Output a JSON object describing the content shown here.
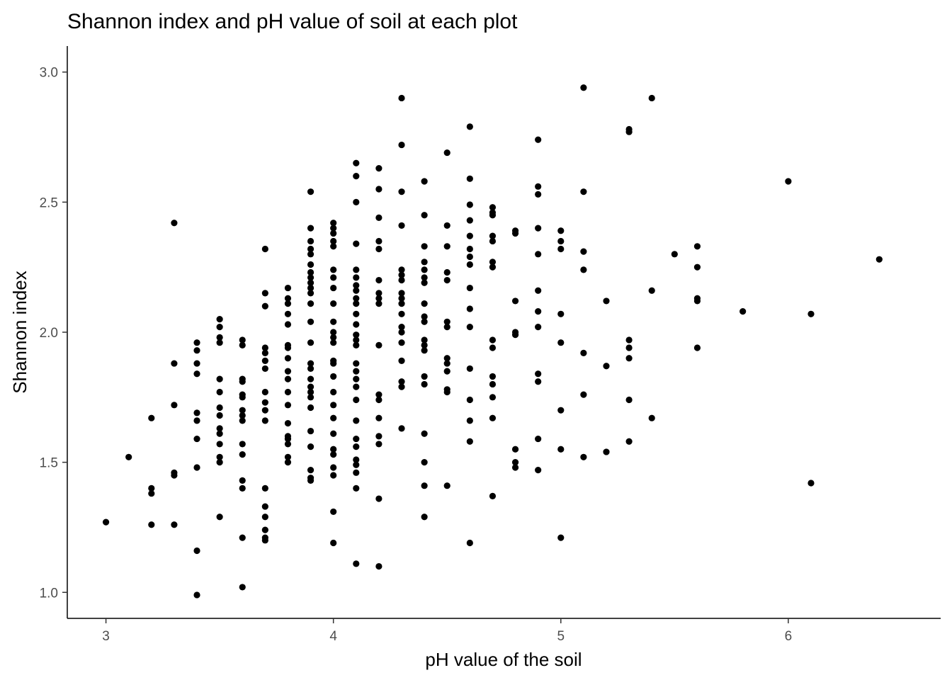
{
  "chart_data": {
    "type": "scatter",
    "title": "Shannon index and pH value of soil at each plot",
    "xlabel": "pH value of the soil",
    "ylabel": "Shannon index",
    "xlim": [
      2.83,
      6.67
    ],
    "ylim": [
      0.9,
      3.1
    ],
    "x_ticks": [
      3,
      4,
      5,
      6
    ],
    "y_ticks": [
      1.0,
      1.5,
      2.0,
      2.5,
      3.0
    ],
    "x_tick_labels": [
      "3",
      "4",
      "5",
      "6"
    ],
    "y_tick_labels": [
      "1.0",
      "1.5",
      "2.0",
      "2.5",
      "3.0"
    ],
    "grid": false,
    "point_color": "#000000",
    "points": [
      [
        3.0,
        1.27
      ],
      [
        3.1,
        1.52
      ],
      [
        3.2,
        1.67
      ],
      [
        3.2,
        1.4
      ],
      [
        3.2,
        1.38
      ],
      [
        3.2,
        1.26
      ],
      [
        3.3,
        2.42
      ],
      [
        3.3,
        1.88
      ],
      [
        3.3,
        1.72
      ],
      [
        3.3,
        1.46
      ],
      [
        3.3,
        1.45
      ],
      [
        3.3,
        1.26
      ],
      [
        3.4,
        1.96
      ],
      [
        3.4,
        1.93
      ],
      [
        3.4,
        1.88
      ],
      [
        3.4,
        1.84
      ],
      [
        3.4,
        1.69
      ],
      [
        3.4,
        1.66
      ],
      [
        3.4,
        1.59
      ],
      [
        3.4,
        1.48
      ],
      [
        3.4,
        1.16
      ],
      [
        3.4,
        0.99
      ],
      [
        3.5,
        2.05
      ],
      [
        3.5,
        2.02
      ],
      [
        3.5,
        1.98
      ],
      [
        3.5,
        1.96
      ],
      [
        3.5,
        1.82
      ],
      [
        3.5,
        1.77
      ],
      [
        3.5,
        1.71
      ],
      [
        3.5,
        1.68
      ],
      [
        3.5,
        1.63
      ],
      [
        3.5,
        1.61
      ],
      [
        3.5,
        1.57
      ],
      [
        3.5,
        1.52
      ],
      [
        3.5,
        1.5
      ],
      [
        3.5,
        1.29
      ],
      [
        3.6,
        1.97
      ],
      [
        3.6,
        1.95
      ],
      [
        3.6,
        1.82
      ],
      [
        3.6,
        1.81
      ],
      [
        3.6,
        1.76
      ],
      [
        3.6,
        1.75
      ],
      [
        3.6,
        1.7
      ],
      [
        3.6,
        1.68
      ],
      [
        3.6,
        1.66
      ],
      [
        3.6,
        1.57
      ],
      [
        3.6,
        1.53
      ],
      [
        3.6,
        1.43
      ],
      [
        3.6,
        1.4
      ],
      [
        3.6,
        1.21
      ],
      [
        3.6,
        1.02
      ],
      [
        3.7,
        2.32
      ],
      [
        3.7,
        2.15
      ],
      [
        3.7,
        2.1
      ],
      [
        3.7,
        1.94
      ],
      [
        3.7,
        1.92
      ],
      [
        3.7,
        1.89
      ],
      [
        3.7,
        1.86
      ],
      [
        3.7,
        1.77
      ],
      [
        3.7,
        1.73
      ],
      [
        3.7,
        1.7
      ],
      [
        3.7,
        1.66
      ],
      [
        3.7,
        1.4
      ],
      [
        3.7,
        1.33
      ],
      [
        3.7,
        1.29
      ],
      [
        3.7,
        1.24
      ],
      [
        3.7,
        1.21
      ],
      [
        3.7,
        1.2
      ],
      [
        3.8,
        2.17
      ],
      [
        3.8,
        2.13
      ],
      [
        3.8,
        2.11
      ],
      [
        3.8,
        2.07
      ],
      [
        3.8,
        2.03
      ],
      [
        3.8,
        1.95
      ],
      [
        3.8,
        1.94
      ],
      [
        3.8,
        1.9
      ],
      [
        3.8,
        1.85
      ],
      [
        3.8,
        1.82
      ],
      [
        3.8,
        1.77
      ],
      [
        3.8,
        1.72
      ],
      [
        3.8,
        1.65
      ],
      [
        3.8,
        1.6
      ],
      [
        3.8,
        1.59
      ],
      [
        3.8,
        1.57
      ],
      [
        3.8,
        1.52
      ],
      [
        3.8,
        1.5
      ],
      [
        3.9,
        2.54
      ],
      [
        3.9,
        2.4
      ],
      [
        3.9,
        2.35
      ],
      [
        3.9,
        2.32
      ],
      [
        3.9,
        2.3
      ],
      [
        3.9,
        2.26
      ],
      [
        3.9,
        2.23
      ],
      [
        3.9,
        2.21
      ],
      [
        3.9,
        2.19
      ],
      [
        3.9,
        2.17
      ],
      [
        3.9,
        2.15
      ],
      [
        3.9,
        2.11
      ],
      [
        3.9,
        2.04
      ],
      [
        3.9,
        1.96
      ],
      [
        3.9,
        1.88
      ],
      [
        3.9,
        1.86
      ],
      [
        3.9,
        1.82
      ],
      [
        3.9,
        1.79
      ],
      [
        3.9,
        1.77
      ],
      [
        3.9,
        1.75
      ],
      [
        3.9,
        1.71
      ],
      [
        3.9,
        1.62
      ],
      [
        3.9,
        1.56
      ],
      [
        3.9,
        1.47
      ],
      [
        3.9,
        1.44
      ],
      [
        3.9,
        1.43
      ],
      [
        4.0,
        2.42
      ],
      [
        4.0,
        2.4
      ],
      [
        4.0,
        2.38
      ],
      [
        4.0,
        2.35
      ],
      [
        4.0,
        2.33
      ],
      [
        4.0,
        2.24
      ],
      [
        4.0,
        2.21
      ],
      [
        4.0,
        2.17
      ],
      [
        4.0,
        2.11
      ],
      [
        4.0,
        2.04
      ],
      [
        4.0,
        2.0
      ],
      [
        4.0,
        1.98
      ],
      [
        4.0,
        1.96
      ],
      [
        4.0,
        1.89
      ],
      [
        4.0,
        1.88
      ],
      [
        4.0,
        1.83
      ],
      [
        4.0,
        1.77
      ],
      [
        4.0,
        1.72
      ],
      [
        4.0,
        1.67
      ],
      [
        4.0,
        1.61
      ],
      [
        4.0,
        1.55
      ],
      [
        4.0,
        1.53
      ],
      [
        4.0,
        1.48
      ],
      [
        4.0,
        1.45
      ],
      [
        4.0,
        1.31
      ],
      [
        4.0,
        1.19
      ],
      [
        4.1,
        2.65
      ],
      [
        4.1,
        2.6
      ],
      [
        4.1,
        2.5
      ],
      [
        4.1,
        2.34
      ],
      [
        4.1,
        2.24
      ],
      [
        4.1,
        2.21
      ],
      [
        4.1,
        2.18
      ],
      [
        4.1,
        2.16
      ],
      [
        4.1,
        2.13
      ],
      [
        4.1,
        2.11
      ],
      [
        4.1,
        2.07
      ],
      [
        4.1,
        2.03
      ],
      [
        4.1,
        1.99
      ],
      [
        4.1,
        1.97
      ],
      [
        4.1,
        1.95
      ],
      [
        4.1,
        1.88
      ],
      [
        4.1,
        1.85
      ],
      [
        4.1,
        1.82
      ],
      [
        4.1,
        1.79
      ],
      [
        4.1,
        1.74
      ],
      [
        4.1,
        1.66
      ],
      [
        4.1,
        1.59
      ],
      [
        4.1,
        1.56
      ],
      [
        4.1,
        1.51
      ],
      [
        4.1,
        1.49
      ],
      [
        4.1,
        1.46
      ],
      [
        4.1,
        1.4
      ],
      [
        4.1,
        1.11
      ],
      [
        4.2,
        2.63
      ],
      [
        4.2,
        2.55
      ],
      [
        4.2,
        2.44
      ],
      [
        4.2,
        2.35
      ],
      [
        4.2,
        2.32
      ],
      [
        4.2,
        2.2
      ],
      [
        4.2,
        2.15
      ],
      [
        4.2,
        2.13
      ],
      [
        4.2,
        2.11
      ],
      [
        4.2,
        1.95
      ],
      [
        4.2,
        1.76
      ],
      [
        4.2,
        1.74
      ],
      [
        4.2,
        1.67
      ],
      [
        4.2,
        1.6
      ],
      [
        4.2,
        1.57
      ],
      [
        4.2,
        1.36
      ],
      [
        4.2,
        1.1
      ],
      [
        4.3,
        2.9
      ],
      [
        4.3,
        2.72
      ],
      [
        4.3,
        2.54
      ],
      [
        4.3,
        2.41
      ],
      [
        4.3,
        2.24
      ],
      [
        4.3,
        2.22
      ],
      [
        4.3,
        2.2
      ],
      [
        4.3,
        2.15
      ],
      [
        4.3,
        2.13
      ],
      [
        4.3,
        2.11
      ],
      [
        4.3,
        2.07
      ],
      [
        4.3,
        2.02
      ],
      [
        4.3,
        2.0
      ],
      [
        4.3,
        1.96
      ],
      [
        4.3,
        1.89
      ],
      [
        4.3,
        1.81
      ],
      [
        4.3,
        1.79
      ],
      [
        4.3,
        1.63
      ],
      [
        4.4,
        2.58
      ],
      [
        4.4,
        2.45
      ],
      [
        4.4,
        2.33
      ],
      [
        4.4,
        2.27
      ],
      [
        4.4,
        2.24
      ],
      [
        4.4,
        2.21
      ],
      [
        4.4,
        2.19
      ],
      [
        4.4,
        2.11
      ],
      [
        4.4,
        2.06
      ],
      [
        4.4,
        2.04
      ],
      [
        4.4,
        1.97
      ],
      [
        4.4,
        1.95
      ],
      [
        4.4,
        1.93
      ],
      [
        4.4,
        1.83
      ],
      [
        4.4,
        1.8
      ],
      [
        4.4,
        1.61
      ],
      [
        4.4,
        1.5
      ],
      [
        4.4,
        1.41
      ],
      [
        4.4,
        1.29
      ],
      [
        4.5,
        2.69
      ],
      [
        4.5,
        2.41
      ],
      [
        4.5,
        2.33
      ],
      [
        4.5,
        2.23
      ],
      [
        4.5,
        2.2
      ],
      [
        4.5,
        2.04
      ],
      [
        4.5,
        2.02
      ],
      [
        4.5,
        1.9
      ],
      [
        4.5,
        1.88
      ],
      [
        4.5,
        1.85
      ],
      [
        4.5,
        1.78
      ],
      [
        4.5,
        1.77
      ],
      [
        4.5,
        1.41
      ],
      [
        4.6,
        2.79
      ],
      [
        4.6,
        2.59
      ],
      [
        4.6,
        2.49
      ],
      [
        4.6,
        2.43
      ],
      [
        4.6,
        2.37
      ],
      [
        4.6,
        2.32
      ],
      [
        4.6,
        2.29
      ],
      [
        4.6,
        2.26
      ],
      [
        4.6,
        2.17
      ],
      [
        4.6,
        2.09
      ],
      [
        4.6,
        2.02
      ],
      [
        4.6,
        1.86
      ],
      [
        4.6,
        1.74
      ],
      [
        4.6,
        1.66
      ],
      [
        4.6,
        1.58
      ],
      [
        4.6,
        1.19
      ],
      [
        4.7,
        2.48
      ],
      [
        4.7,
        2.46
      ],
      [
        4.7,
        2.45
      ],
      [
        4.7,
        2.37
      ],
      [
        4.7,
        2.35
      ],
      [
        4.7,
        2.27
      ],
      [
        4.7,
        2.25
      ],
      [
        4.7,
        1.97
      ],
      [
        4.7,
        1.94
      ],
      [
        4.7,
        1.83
      ],
      [
        4.7,
        1.8
      ],
      [
        4.7,
        1.75
      ],
      [
        4.7,
        1.67
      ],
      [
        4.7,
        1.37
      ],
      [
        4.8,
        2.39
      ],
      [
        4.8,
        2.38
      ],
      [
        4.8,
        2.12
      ],
      [
        4.8,
        2.0
      ],
      [
        4.8,
        1.99
      ],
      [
        4.8,
        1.55
      ],
      [
        4.8,
        1.5
      ],
      [
        4.8,
        1.48
      ],
      [
        4.9,
        2.74
      ],
      [
        4.9,
        2.56
      ],
      [
        4.9,
        2.53
      ],
      [
        4.9,
        2.4
      ],
      [
        4.9,
        2.3
      ],
      [
        4.9,
        2.16
      ],
      [
        4.9,
        2.08
      ],
      [
        4.9,
        2.02
      ],
      [
        4.9,
        1.84
      ],
      [
        4.9,
        1.81
      ],
      [
        4.9,
        1.59
      ],
      [
        4.9,
        1.47
      ],
      [
        5.0,
        2.39
      ],
      [
        5.0,
        2.35
      ],
      [
        5.0,
        2.32
      ],
      [
        5.0,
        2.07
      ],
      [
        5.0,
        1.96
      ],
      [
        5.0,
        1.7
      ],
      [
        5.0,
        1.55
      ],
      [
        5.0,
        1.21
      ],
      [
        5.1,
        2.94
      ],
      [
        5.1,
        2.54
      ],
      [
        5.1,
        2.31
      ],
      [
        5.1,
        2.24
      ],
      [
        5.1,
        1.92
      ],
      [
        5.1,
        1.76
      ],
      [
        5.1,
        1.52
      ],
      [
        5.2,
        2.12
      ],
      [
        5.2,
        1.87
      ],
      [
        5.2,
        1.54
      ],
      [
        5.3,
        2.78
      ],
      [
        5.3,
        2.77
      ],
      [
        5.3,
        1.97
      ],
      [
        5.3,
        1.94
      ],
      [
        5.3,
        1.9
      ],
      [
        5.3,
        1.74
      ],
      [
        5.3,
        1.58
      ],
      [
        5.4,
        2.9
      ],
      [
        5.4,
        2.16
      ],
      [
        5.4,
        1.67
      ],
      [
        5.5,
        2.3
      ],
      [
        5.6,
        2.33
      ],
      [
        5.6,
        2.25
      ],
      [
        5.6,
        2.13
      ],
      [
        5.6,
        2.12
      ],
      [
        5.6,
        1.94
      ],
      [
        5.8,
        2.08
      ],
      [
        6.0,
        2.58
      ],
      [
        6.1,
        2.07
      ],
      [
        6.1,
        1.42
      ],
      [
        6.4,
        2.28
      ]
    ]
  }
}
